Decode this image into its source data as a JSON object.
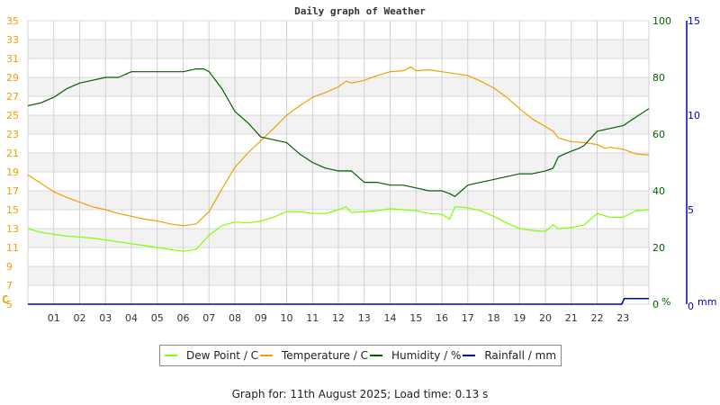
{
  "chart_data": {
    "type": "line",
    "title": "Daily graph of Weather",
    "xlabel": "",
    "x_ticks": [
      "01",
      "02",
      "03",
      "04",
      "05",
      "06",
      "07",
      "08",
      "09",
      "10",
      "11",
      "12",
      "13",
      "14",
      "15",
      "16",
      "17",
      "18",
      "19",
      "20",
      "21",
      "22",
      "23"
    ],
    "axes": {
      "left": {
        "label": "C",
        "ticks": [
          5,
          7,
          9,
          11,
          13,
          15,
          17,
          19,
          21,
          23,
          25,
          27,
          29,
          31,
          33,
          35
        ],
        "range": [
          5,
          35
        ],
        "color": "#f0a000"
      },
      "right_humidity": {
        "label": "%",
        "ticks": [
          0,
          20,
          40,
          60,
          80,
          100
        ],
        "range": [
          0,
          100
        ],
        "color": "#006000"
      },
      "right_rainfall": {
        "label": "mm",
        "ticks": [
          0,
          5,
          10,
          15
        ],
        "range": [
          0,
          15
        ],
        "color": "#0000c0"
      }
    },
    "grid": true,
    "legend_position": "bottom",
    "series": [
      {
        "name": "Dew Point / C",
        "color": "#80ff00",
        "axis": "left",
        "x": [
          0,
          0.5,
          1,
          1.5,
          2,
          2.5,
          3,
          3.5,
          4,
          4.5,
          5,
          5.5,
          6,
          6.5,
          7,
          7.5,
          8,
          8.5,
          9,
          9.5,
          10,
          10.5,
          11,
          11.5,
          12,
          12.3,
          12.5,
          13,
          13.5,
          14,
          14.5,
          15,
          15.5,
          16,
          16.3,
          16.5,
          17,
          17.5,
          18,
          18.5,
          19,
          19.5,
          20,
          20.3,
          20.5,
          21,
          21.5,
          22,
          22.5,
          23,
          23.5,
          24
        ],
        "values": [
          13.0,
          12.6,
          12.4,
          12.2,
          12.1,
          12.0,
          11.8,
          11.6,
          11.4,
          11.2,
          11.0,
          10.8,
          10.6,
          10.8,
          12.3,
          13.3,
          13.7,
          13.6,
          13.8,
          14.2,
          14.8,
          14.8,
          14.6,
          14.6,
          15.0,
          15.3,
          14.7,
          14.8,
          14.9,
          15.1,
          15.0,
          14.9,
          14.6,
          14.5,
          14.0,
          15.3,
          15.2,
          14.9,
          14.3,
          13.6,
          13.0,
          12.8,
          12.7,
          13.4,
          13.0,
          13.1,
          13.4,
          14.6,
          14.2,
          14.2,
          14.9,
          15.0
        ]
      },
      {
        "name": "Temperature / C",
        "color": "#f0a000",
        "axis": "left",
        "x": [
          0,
          0.5,
          1,
          1.5,
          2,
          2.5,
          3,
          3.5,
          4,
          4.5,
          5,
          5.5,
          6,
          6.5,
          7,
          7.5,
          8,
          8.5,
          9,
          9.5,
          10,
          10.5,
          11,
          11.5,
          12,
          12.3,
          12.5,
          13,
          13.5,
          14,
          14.5,
          14.8,
          15,
          15.5,
          16,
          16.5,
          17,
          17.5,
          18,
          18.5,
          19,
          19.5,
          20,
          20.3,
          20.5,
          21,
          21.5,
          22,
          22.3,
          22.5,
          23,
          23.5,
          24
        ],
        "values": [
          18.7,
          17.8,
          16.9,
          16.3,
          15.8,
          15.3,
          15.0,
          14.6,
          14.3,
          14.0,
          13.8,
          13.5,
          13.3,
          13.5,
          14.8,
          17.2,
          19.5,
          21.0,
          22.3,
          23.6,
          25.0,
          26.0,
          26.9,
          27.4,
          28.0,
          28.6,
          28.4,
          28.7,
          29.2,
          29.6,
          29.7,
          30.1,
          29.7,
          29.8,
          29.6,
          29.4,
          29.2,
          28.6,
          27.9,
          26.9,
          25.7,
          24.6,
          23.8,
          23.3,
          22.6,
          22.2,
          22.1,
          21.9,
          21.5,
          21.6,
          21.4,
          20.9,
          20.8
        ]
      },
      {
        "name": "Humidity / %",
        "color": "#006000",
        "axis": "right_humidity",
        "x": [
          0,
          0.5,
          1,
          1.5,
          2,
          2.5,
          3,
          3.5,
          4,
          4.5,
          5,
          5.5,
          6,
          6.5,
          6.8,
          7,
          7.5,
          8,
          8.5,
          9,
          9.5,
          10,
          10.5,
          11,
          11.5,
          12,
          12.5,
          13,
          13.5,
          14,
          14.5,
          15,
          15.5,
          16,
          16.3,
          16.5,
          17,
          17.5,
          18,
          18.5,
          19,
          19.5,
          20,
          20.3,
          20.5,
          21,
          21.3,
          21.5,
          22,
          22.5,
          23,
          23.5,
          24
        ],
        "values": [
          70,
          71,
          73,
          76,
          78,
          79,
          80,
          80,
          82,
          82,
          82,
          82,
          82,
          83,
          83,
          82,
          76,
          68,
          64,
          59,
          58,
          57,
          53,
          50,
          48,
          47,
          47,
          43,
          43,
          42,
          42,
          41,
          40,
          40,
          39,
          38,
          42,
          43,
          44,
          45,
          46,
          46,
          47,
          48,
          52,
          54,
          55,
          56,
          61,
          62,
          63,
          66,
          69
        ]
      },
      {
        "name": "Rainfall / mm",
        "color": "#0000c0",
        "axis": "right_rainfall",
        "x": [
          0,
          22.95,
          23.05,
          24
        ],
        "values": [
          0,
          0,
          0.3,
          0.3
        ]
      }
    ]
  },
  "legend": [
    {
      "label": "Dew Point / C",
      "color": "#80ff00"
    },
    {
      "label": "Temperature / C",
      "color": "#f0a000"
    },
    {
      "label": "Humidity / %",
      "color": "#006000"
    },
    {
      "label": "Rainfall / mm",
      "color": "#0000c0"
    }
  ],
  "footer": "Graph for: 11th August 2025; Load time: 0.13 s"
}
